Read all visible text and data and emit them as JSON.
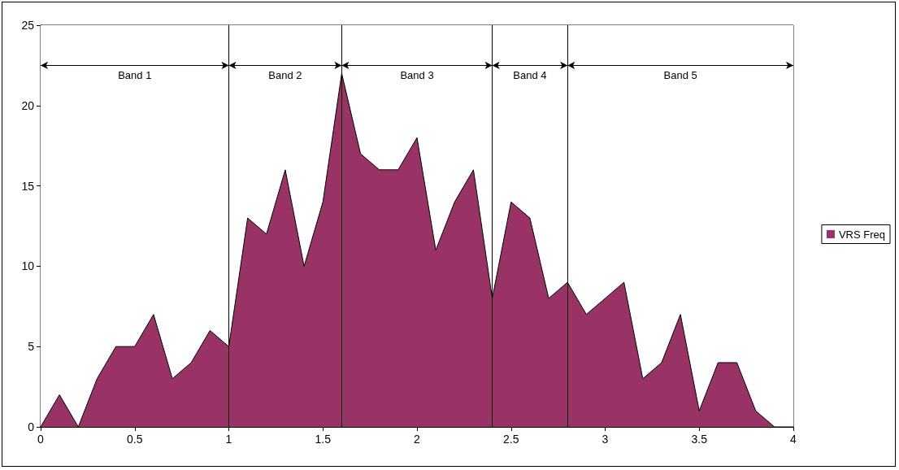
{
  "chart_data": {
    "type": "area",
    "x": [
      0,
      0.1,
      0.2,
      0.3,
      0.4,
      0.5,
      0.6,
      0.7,
      0.8,
      0.9,
      1,
      1.1,
      1.2,
      1.3,
      1.4,
      1.5,
      1.6,
      1.7,
      1.8,
      1.9,
      2,
      2.1,
      2.2,
      2.3,
      2.4,
      2.5,
      2.6,
      2.7,
      2.8,
      2.9,
      3,
      3.1,
      3.2,
      3.3,
      3.4,
      3.5,
      3.6,
      3.7,
      3.8,
      3.9,
      4
    ],
    "series": [
      {
        "name": "VRS Freq",
        "color": "#993366",
        "values": [
          0,
          2,
          0,
          3,
          5,
          5,
          7,
          3,
          4,
          6,
          5,
          13,
          12,
          16,
          10,
          14,
          22,
          17,
          16,
          16,
          18,
          11,
          14,
          16,
          8,
          14,
          13,
          8,
          9,
          7,
          8,
          9,
          3,
          4,
          7,
          1,
          4,
          4,
          1,
          0,
          0
        ]
      }
    ],
    "xlim": [
      0,
      4
    ],
    "xticks": [
      0,
      0.5,
      1,
      1.5,
      2,
      2.5,
      3,
      3.5,
      4
    ],
    "ylim": [
      0,
      25
    ],
    "yticks": [
      0,
      5,
      10,
      15,
      20,
      25
    ],
    "ref_lines": [
      {
        "axis": "x",
        "value": 1,
        "label": null
      },
      {
        "axis": "x",
        "value": 1.6,
        "label": null
      },
      {
        "axis": "x",
        "value": 2.4,
        "label": null
      },
      {
        "axis": "x",
        "value": 2.8,
        "label": null
      }
    ],
    "bands": [
      {
        "axis": "x",
        "from": 0,
        "to": 1,
        "label": "Band 1",
        "color": "#ffffff"
      },
      {
        "axis": "x",
        "from": 1,
        "to": 1.6,
        "label": "Band 2",
        "color": "#ffffff"
      },
      {
        "axis": "x",
        "from": 1.6,
        "to": 2.4,
        "label": "Band 3",
        "color": "#ffffff"
      },
      {
        "axis": "x",
        "from": 2.4,
        "to": 2.8,
        "label": "Band 4",
        "color": "#ffffff"
      },
      {
        "axis": "x",
        "from": 2.8,
        "to": 4,
        "label": "Band 5",
        "color": "#ffffff"
      }
    ],
    "grid": false,
    "legend": "right",
    "marker": "none"
  }
}
